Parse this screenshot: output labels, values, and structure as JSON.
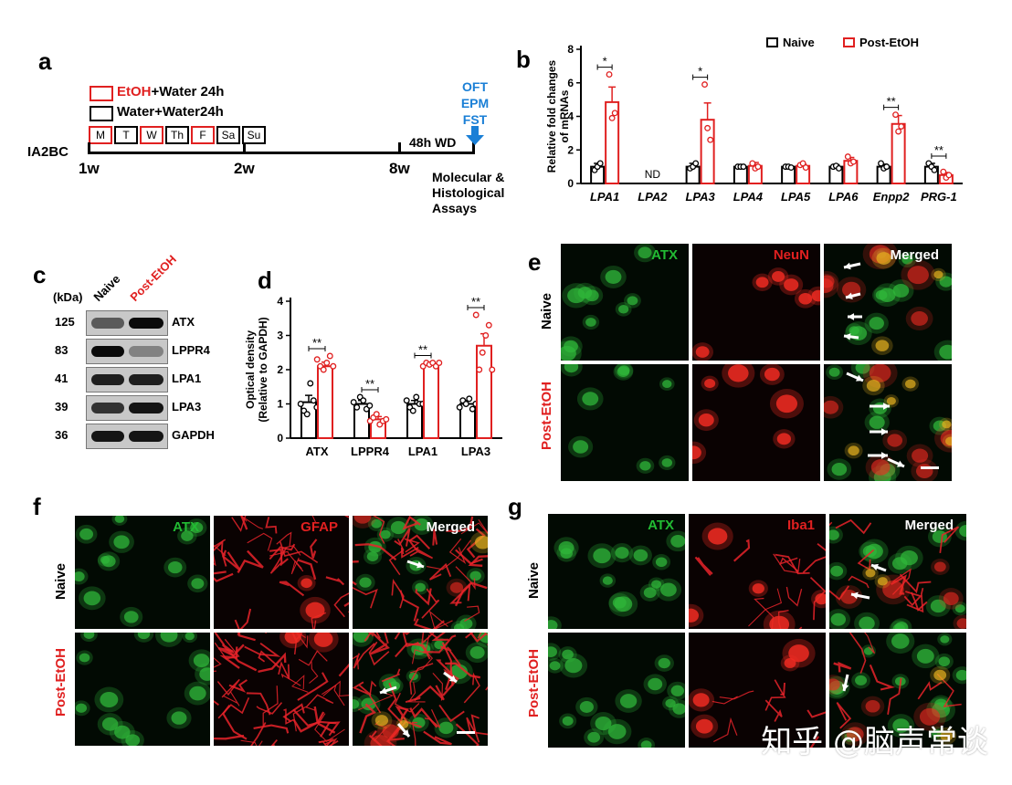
{
  "panels": {
    "a": "a",
    "b": "b",
    "c": "c",
    "d": "d",
    "e": "e",
    "f": "f",
    "g": "g"
  },
  "panel_a": {
    "legend_etoh_red": "EtOH",
    "legend_etoh_rest": "+Water 24h",
    "legend_water": "Water+Water24h",
    "days": [
      {
        "label": "M",
        "red": true
      },
      {
        "label": "T",
        "red": false
      },
      {
        "label": "W",
        "red": true
      },
      {
        "label": "Th",
        "red": false
      },
      {
        "label": "F",
        "red": true
      },
      {
        "label": "Sa",
        "red": false
      },
      {
        "label": "Su",
        "red": false
      }
    ],
    "protocol": "IA2BC",
    "weeks": [
      "1w",
      "2w",
      "8w"
    ],
    "withdrawal": "48h WD",
    "tests": [
      "OFT",
      "EPM",
      "FST"
    ],
    "assays_lines": [
      "Molecular &",
      "Histological",
      "Assays"
    ],
    "accent": "#1a7fd6"
  },
  "chart_data": [
    {
      "panel": "b",
      "type": "bar",
      "ylabel_lines": [
        "Relative fold changes",
        "of  mRNAs"
      ],
      "ylim": [
        0,
        8
      ],
      "yticks": [
        0,
        2,
        4,
        6,
        8
      ],
      "categories": [
        "LPA1",
        "LPA2",
        "LPA3",
        "LPA4",
        "LPA5",
        "LPA6",
        "Enpp2",
        "PRG-1"
      ],
      "legend": [
        "Naive",
        "Post-EtOH"
      ],
      "legend_position": "top-right",
      "series": [
        {
          "name": "Naive",
          "color": "#000000",
          "values": [
            1.0,
            null,
            1.0,
            1.0,
            1.0,
            1.0,
            1.0,
            1.0
          ],
          "errors": [
            0.2,
            null,
            0.2,
            0.08,
            0.08,
            0.12,
            0.15,
            0.2
          ]
        },
        {
          "name": "Post-EtOH",
          "color": "#e02020",
          "values": [
            4.85,
            null,
            3.8,
            1.05,
            1.05,
            1.35,
            3.55,
            0.5
          ],
          "errors": [
            0.9,
            null,
            1.0,
            0.2,
            0.1,
            0.2,
            0.5,
            0.15
          ]
        }
      ],
      "points": [
        [
          [
            0.8,
            1.0,
            1.2
          ],
          null,
          [
            0.9,
            1.0,
            1.2
          ],
          [
            1.0,
            1.0,
            1.0
          ],
          [
            1.0,
            1.0,
            0.95
          ],
          [
            1.0,
            1.05,
            0.9
          ],
          [
            1.2,
            0.9,
            1.0
          ],
          [
            1.2,
            1.0,
            0.8
          ]
        ],
        [
          [
            6.5,
            3.9,
            4.2
          ],
          null,
          [
            5.9,
            3.3,
            2.6
          ],
          [
            1.2,
            0.9,
            1.0
          ],
          [
            1.1,
            1.2,
            0.95
          ],
          [
            1.6,
            1.2,
            1.3
          ],
          [
            4.1,
            3.1,
            3.4
          ],
          [
            0.7,
            0.35,
            0.5
          ]
        ]
      ],
      "nd_label": "ND",
      "significance": [
        {
          "index": 0,
          "label": "*"
        },
        {
          "index": 2,
          "label": "*"
        },
        {
          "index": 6,
          "label": "**"
        },
        {
          "index": 7,
          "label": "**"
        }
      ],
      "grid": false
    },
    {
      "panel": "d",
      "type": "bar",
      "ylabel_lines": [
        "Optical density",
        "(Relative to GAPDH)"
      ],
      "ylim": [
        0,
        4
      ],
      "yticks": [
        0,
        1,
        2,
        3,
        4
      ],
      "categories": [
        "ATX",
        "LPPR4",
        "LPA1",
        "LPA3"
      ],
      "series": [
        {
          "name": "Naive",
          "color": "#000000",
          "values": [
            1.05,
            1.0,
            1.0,
            1.0
          ],
          "errors": [
            0.2,
            0.1,
            0.1,
            0.1
          ]
        },
        {
          "name": "Post-EtOH",
          "color": "#e02020",
          "values": [
            2.1,
            0.55,
            2.15,
            2.7
          ],
          "errors": [
            0.12,
            0.08,
            0.05,
            0.35
          ]
        }
      ],
      "points": [
        [
          [
            1.0,
            0.8,
            0.7,
            1.6,
            1.1,
            0.9
          ],
          [
            1.05,
            0.9,
            1.2,
            1.1,
            0.85,
            0.95
          ],
          [
            1.1,
            0.9,
            0.8,
            1.2,
            1.0,
            1.0
          ],
          [
            0.9,
            1.1,
            1.0,
            1.15,
            0.85,
            1.0
          ]
        ],
        [
          [
            2.3,
            2.1,
            2.0,
            2.2,
            2.4,
            2.1
          ],
          [
            0.5,
            0.6,
            0.7,
            0.4,
            0.5,
            0.55
          ],
          [
            2.1,
            2.2,
            2.15,
            2.2,
            2.1,
            2.2
          ],
          [
            3.6,
            2.0,
            2.5,
            3.0,
            3.3,
            2.0
          ]
        ]
      ],
      "significance": [
        {
          "index": 0,
          "label": "**"
        },
        {
          "index": 1,
          "label": "**"
        },
        {
          "index": 2,
          "label": "**"
        },
        {
          "index": 3,
          "label": "**"
        }
      ],
      "grid": false
    }
  ],
  "panel_c": {
    "kda_label": "(kDa)",
    "col_naive": "Naive",
    "col_post": "Post-EtOH",
    "rows": [
      {
        "kda": "125",
        "protein": "ATX"
      },
      {
        "kda": "83",
        "protein": "LPPR4"
      },
      {
        "kda": "41",
        "protein": "LPA1"
      },
      {
        "kda": "39",
        "protein": "LPA3"
      },
      {
        "kda": "36",
        "protein": "GAPDH"
      }
    ]
  },
  "panel_e": {
    "labels": [
      "ATX",
      "NeuN",
      "Merged"
    ],
    "rows": [
      "Naive",
      "Post-EtOH"
    ]
  },
  "panel_f": {
    "labels": [
      "ATX",
      "GFAP",
      "Merged"
    ],
    "rows": [
      "Naive",
      "Post-EtOH"
    ]
  },
  "panel_g": {
    "labels": [
      "ATX",
      "Iba1",
      "Merged"
    ],
    "rows": [
      "Naive",
      "Post-EtOH"
    ]
  },
  "colors": {
    "red": "#e02020",
    "green": "#22bb33",
    "black": "#000000"
  },
  "watermark": "知乎 @脑声常谈"
}
